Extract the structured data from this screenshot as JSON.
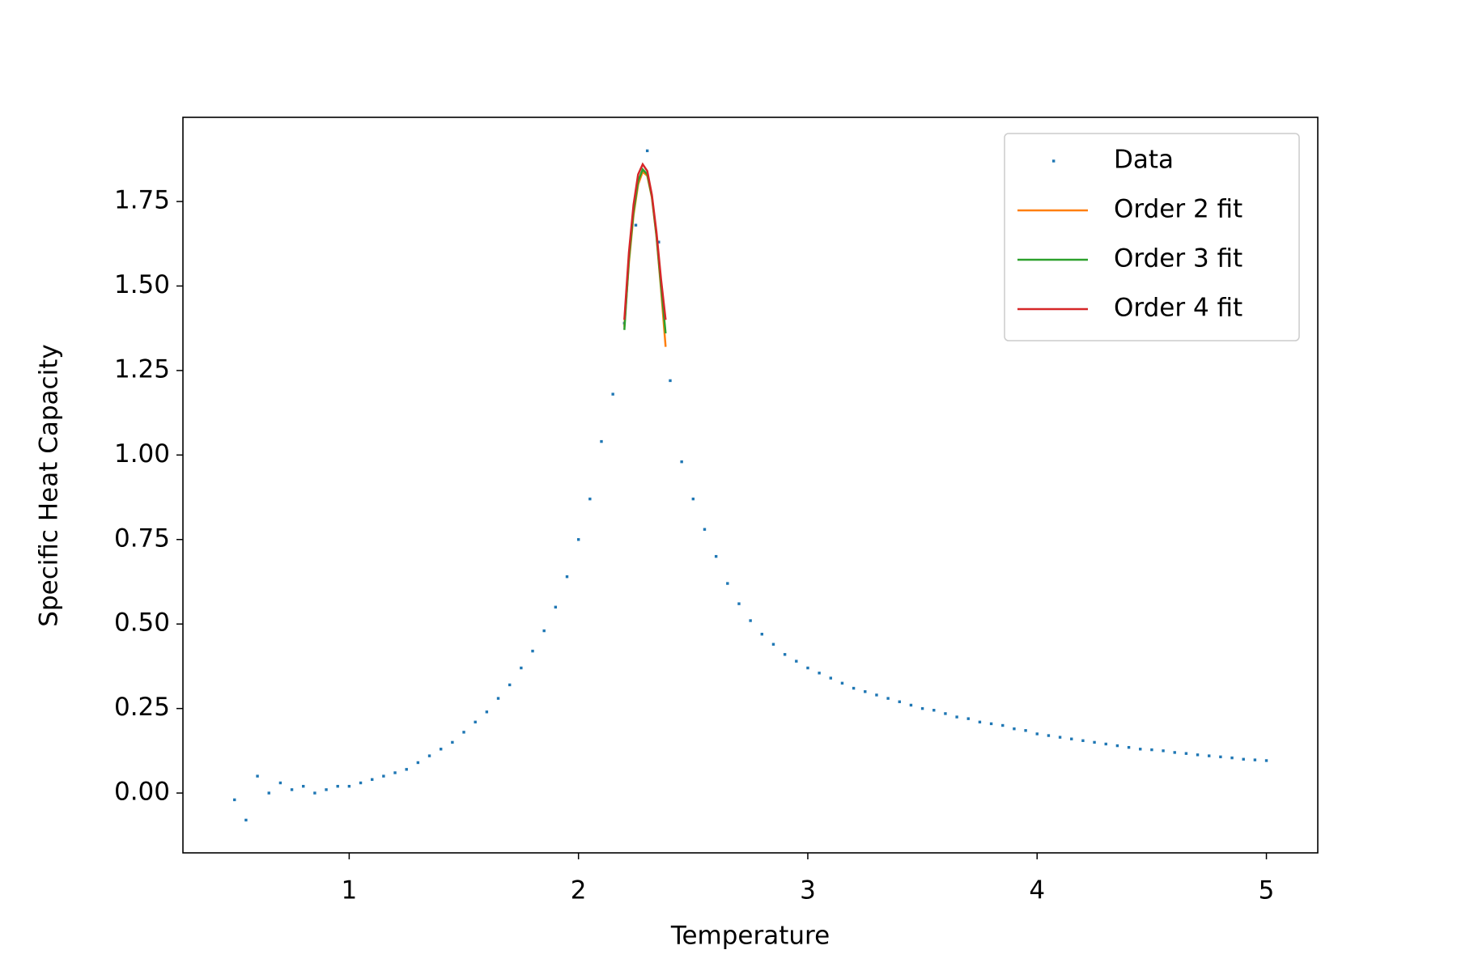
{
  "chart_data": {
    "type": "scatter",
    "xlabel": "Temperature",
    "ylabel": "Specific Heat Capacity",
    "xlim": [
      0.275,
      5.224
    ],
    "ylim": [
      -0.177,
      1.999
    ],
    "xticks": [
      1,
      2,
      3,
      4,
      5
    ],
    "yticks": [
      {
        "value": 0,
        "label": "0.00"
      },
      0.25,
      {
        "value": 0.5,
        "label": "0.50"
      },
      0.75,
      {
        "value": 1,
        "label": "1.00"
      },
      1.25,
      {
        "value": 1.5,
        "label": "1.50"
      },
      1.75
    ],
    "legend": "upper right",
    "grid": false,
    "series": [
      {
        "name": "Data",
        "color": "#1f77b4",
        "marker": "point",
        "x": [
          0.5,
          0.55,
          0.6,
          0.65,
          0.7,
          0.75,
          0.8,
          0.85,
          0.9,
          0.95,
          1.0,
          1.05,
          1.1,
          1.15,
          1.2,
          1.25,
          1.3,
          1.35,
          1.4,
          1.45,
          1.5,
          1.55,
          1.6,
          1.65,
          1.7,
          1.75,
          1.8,
          1.85,
          1.9,
          1.95,
          2.0,
          2.05,
          2.1,
          2.15,
          2.2,
          2.25,
          2.3,
          2.35,
          2.4,
          2.45,
          2.5,
          2.55,
          2.6,
          2.65,
          2.7,
          2.75,
          2.8,
          2.85,
          2.9,
          2.95,
          3.0,
          3.05,
          3.1,
          3.15,
          3.2,
          3.25,
          3.3,
          3.35,
          3.4,
          3.45,
          3.5,
          3.55,
          3.6,
          3.65,
          3.7,
          3.75,
          3.8,
          3.85,
          3.9,
          3.95,
          4.0,
          4.05,
          4.1,
          4.15,
          4.2,
          4.25,
          4.3,
          4.35,
          4.4,
          4.45,
          4.5,
          4.55,
          4.6,
          4.65,
          4.7,
          4.75,
          4.8,
          4.85,
          4.9,
          4.95,
          5.0
        ],
        "values": [
          -0.02,
          -0.08,
          0.05,
          0.0,
          0.03,
          0.01,
          0.02,
          0.0,
          0.01,
          0.02,
          0.02,
          0.03,
          0.04,
          0.05,
          0.06,
          0.07,
          0.09,
          0.11,
          0.13,
          0.15,
          0.18,
          0.21,
          0.24,
          0.28,
          0.32,
          0.37,
          0.42,
          0.48,
          0.55,
          0.64,
          0.75,
          0.87,
          1.04,
          1.18,
          1.39,
          1.68,
          1.9,
          1.63,
          1.22,
          0.98,
          0.87,
          0.78,
          0.7,
          0.62,
          0.56,
          0.51,
          0.47,
          0.44,
          0.41,
          0.39,
          0.37,
          0.355,
          0.34,
          0.325,
          0.31,
          0.3,
          0.29,
          0.28,
          0.27,
          0.26,
          0.25,
          0.245,
          0.235,
          0.225,
          0.22,
          0.21,
          0.205,
          0.2,
          0.19,
          0.185,
          0.175,
          0.17,
          0.165,
          0.16,
          0.155,
          0.15,
          0.145,
          0.14,
          0.135,
          0.13,
          0.128,
          0.125,
          0.12,
          0.117,
          0.113,
          0.11,
          0.107,
          0.104,
          0.1,
          0.098,
          0.096
        ]
      },
      {
        "name": "Order 2 fit",
        "color": "#ff7f0e",
        "marker": "line",
        "x": [
          2.2,
          2.22,
          2.24,
          2.26,
          2.28,
          2.3,
          2.32,
          2.34,
          2.36,
          2.38
        ],
        "values": [
          1.38,
          1.57,
          1.71,
          1.8,
          1.838,
          1.826,
          1.762,
          1.647,
          1.49,
          1.32
        ]
      },
      {
        "name": "Order 3 fit",
        "color": "#2ca02c",
        "marker": "line",
        "x": [
          2.2,
          2.22,
          2.24,
          2.26,
          2.28,
          2.3,
          2.32,
          2.34,
          2.36,
          2.38
        ],
        "values": [
          1.37,
          1.58,
          1.72,
          1.81,
          1.845,
          1.83,
          1.765,
          1.65,
          1.5,
          1.36
        ]
      },
      {
        "name": "Order 4 fit",
        "color": "#d62728",
        "marker": "line",
        "x": [
          2.2,
          2.22,
          2.24,
          2.26,
          2.28,
          2.3,
          2.32,
          2.34,
          2.36,
          2.38
        ],
        "values": [
          1.4,
          1.6,
          1.74,
          1.83,
          1.86,
          1.84,
          1.77,
          1.66,
          1.52,
          1.4
        ]
      }
    ]
  }
}
